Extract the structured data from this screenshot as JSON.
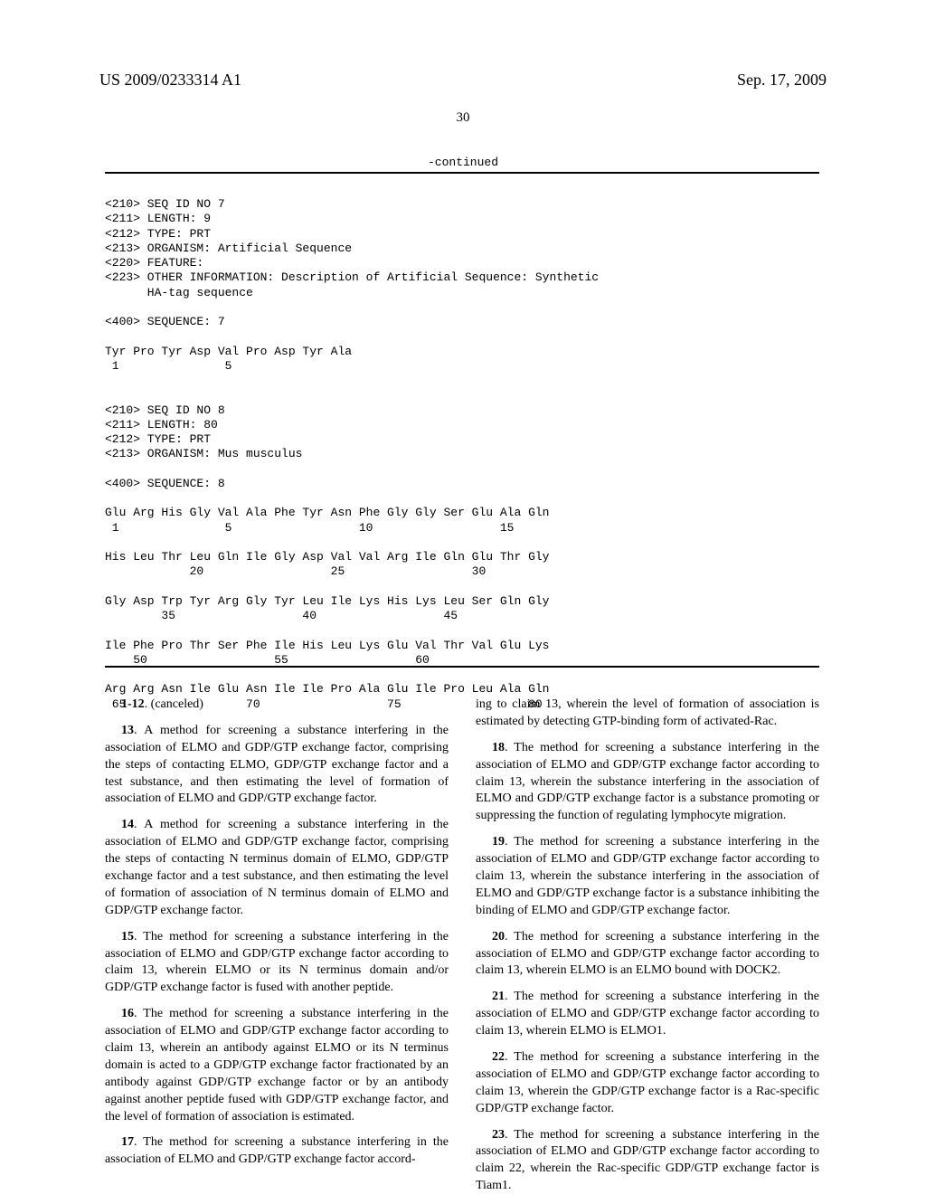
{
  "header": {
    "pub_number": "US 2009/0233314 A1",
    "pub_date": "Sep. 17, 2009",
    "page_number": "30",
    "continued": "-continued"
  },
  "sequences": {
    "seq7": {
      "l1": "<210> SEQ ID NO 7",
      "l2": "<211> LENGTH: 9",
      "l3": "<212> TYPE: PRT",
      "l4": "<213> ORGANISM: Artificial Sequence",
      "l5": "<220> FEATURE:",
      "l6": "<223> OTHER INFORMATION: Description of Artificial Sequence: Synthetic",
      "l7": "      HA-tag sequence",
      "l8": "",
      "l9": "<400> SEQUENCE: 7",
      "l10": "",
      "l11": "Tyr Pro Tyr Asp Val Pro Asp Tyr Ala",
      "l12": " 1               5"
    },
    "seq8": {
      "l1": "",
      "l2": "",
      "l3": "<210> SEQ ID NO 8",
      "l4": "<211> LENGTH: 80",
      "l5": "<212> TYPE: PRT",
      "l6": "<213> ORGANISM: Mus musculus",
      "l7": "",
      "l8": "<400> SEQUENCE: 8",
      "l9": "",
      "l10": "Glu Arg His Gly Val Ala Phe Tyr Asn Phe Gly Gly Ser Glu Ala Gln",
      "l11": " 1               5                  10                  15",
      "l12": "",
      "l13": "His Leu Thr Leu Gln Ile Gly Asp Val Val Arg Ile Gln Glu Thr Gly",
      "l14": "            20                  25                  30",
      "l15": "",
      "l16": "Gly Asp Trp Tyr Arg Gly Tyr Leu Ile Lys His Lys Leu Ser Gln Gly",
      "l17": "        35                  40                  45",
      "l18": "",
      "l19": "Ile Phe Pro Thr Ser Phe Ile His Leu Lys Glu Val Thr Val Glu Lys",
      "l20": "    50                  55                  60",
      "l21": "",
      "l22": "Arg Arg Asn Ile Glu Asn Ile Ile Pro Ala Glu Ile Pro Leu Ala Gln",
      "l23": " 65                 70                  75                  80"
    }
  },
  "claims": {
    "c1_12": {
      "num": "1-12",
      "text": ". (canceled)"
    },
    "c13": {
      "num": "13",
      "text": ". A method for screening a substance interfering in the association of ELMO and GDP/GTP exchange factor, comprising the steps of contacting ELMO, GDP/GTP exchange factor and a test substance, and then estimating the level of formation of association of ELMO and GDP/GTP exchange factor."
    },
    "c14": {
      "num": "14",
      "text": ". A method for screening a substance interfering in the association of ELMO and GDP/GTP exchange factor, comprising the steps of contacting N terminus domain of ELMO, GDP/GTP exchange factor and a test substance, and then estimating the level of formation of association of N terminus domain of ELMO and GDP/GTP exchange factor."
    },
    "c15": {
      "num": "15",
      "text": ". The method for screening a substance interfering in the association of ELMO and GDP/GTP exchange factor according to claim 13, wherein ELMO or its N terminus domain and/or GDP/GTP exchange factor is fused with another peptide."
    },
    "c16": {
      "num": "16",
      "text": ". The method for screening a substance interfering in the association of ELMO and GDP/GTP exchange factor according to claim 13, wherein an antibody against ELMO or its N terminus domain is acted to a GDP/GTP exchange factor fractionated by an antibody against GDP/GTP exchange factor or by an antibody against another peptide fused with GDP/GTP exchange factor, and the level of formation of association is estimated."
    },
    "c17": {
      "num": "17",
      "text": ". The method for screening a substance interfering in the association of ELMO and GDP/GTP exchange factor accord-"
    },
    "c17b": {
      "text": "ing to claim 13, wherein the level of formation of association is estimated by detecting GTP-binding form of activated-Rac."
    },
    "c18": {
      "num": "18",
      "text": ". The method for screening a substance interfering in the association of ELMO and GDP/GTP exchange factor according to claim 13, wherein the substance interfering in the association of ELMO and GDP/GTP exchange factor is a substance promoting or suppressing the function of regulating lymphocyte migration."
    },
    "c19": {
      "num": "19",
      "text": ". The method for screening a substance interfering in the association of ELMO and GDP/GTP exchange factor according to claim 13, wherein the substance interfering in the association of ELMO and GDP/GTP exchange factor is a substance inhibiting the binding of ELMO and GDP/GTP exchange factor."
    },
    "c20": {
      "num": "20",
      "text": ". The method for screening a substance interfering in the association of ELMO and GDP/GTP exchange factor according to claim 13, wherein ELMO is an ELMO bound with DOCK2."
    },
    "c21": {
      "num": "21",
      "text": ". The method for screening a substance interfering in the association of ELMO and GDP/GTP exchange factor according to claim 13, wherein ELMO is ELMO1."
    },
    "c22": {
      "num": "22",
      "text": ". The method for screening a substance interfering in the association of ELMO and GDP/GTP exchange factor according to claim 13, wherein the GDP/GTP exchange factor is a Rac-specific GDP/GTP exchange factor."
    },
    "c23": {
      "num": "23",
      "text": ". The method for screening a substance interfering in the association of ELMO and GDP/GTP exchange factor according to claim 22, wherein the Rac-specific GDP/GTP exchange factor is Tiam1."
    }
  }
}
